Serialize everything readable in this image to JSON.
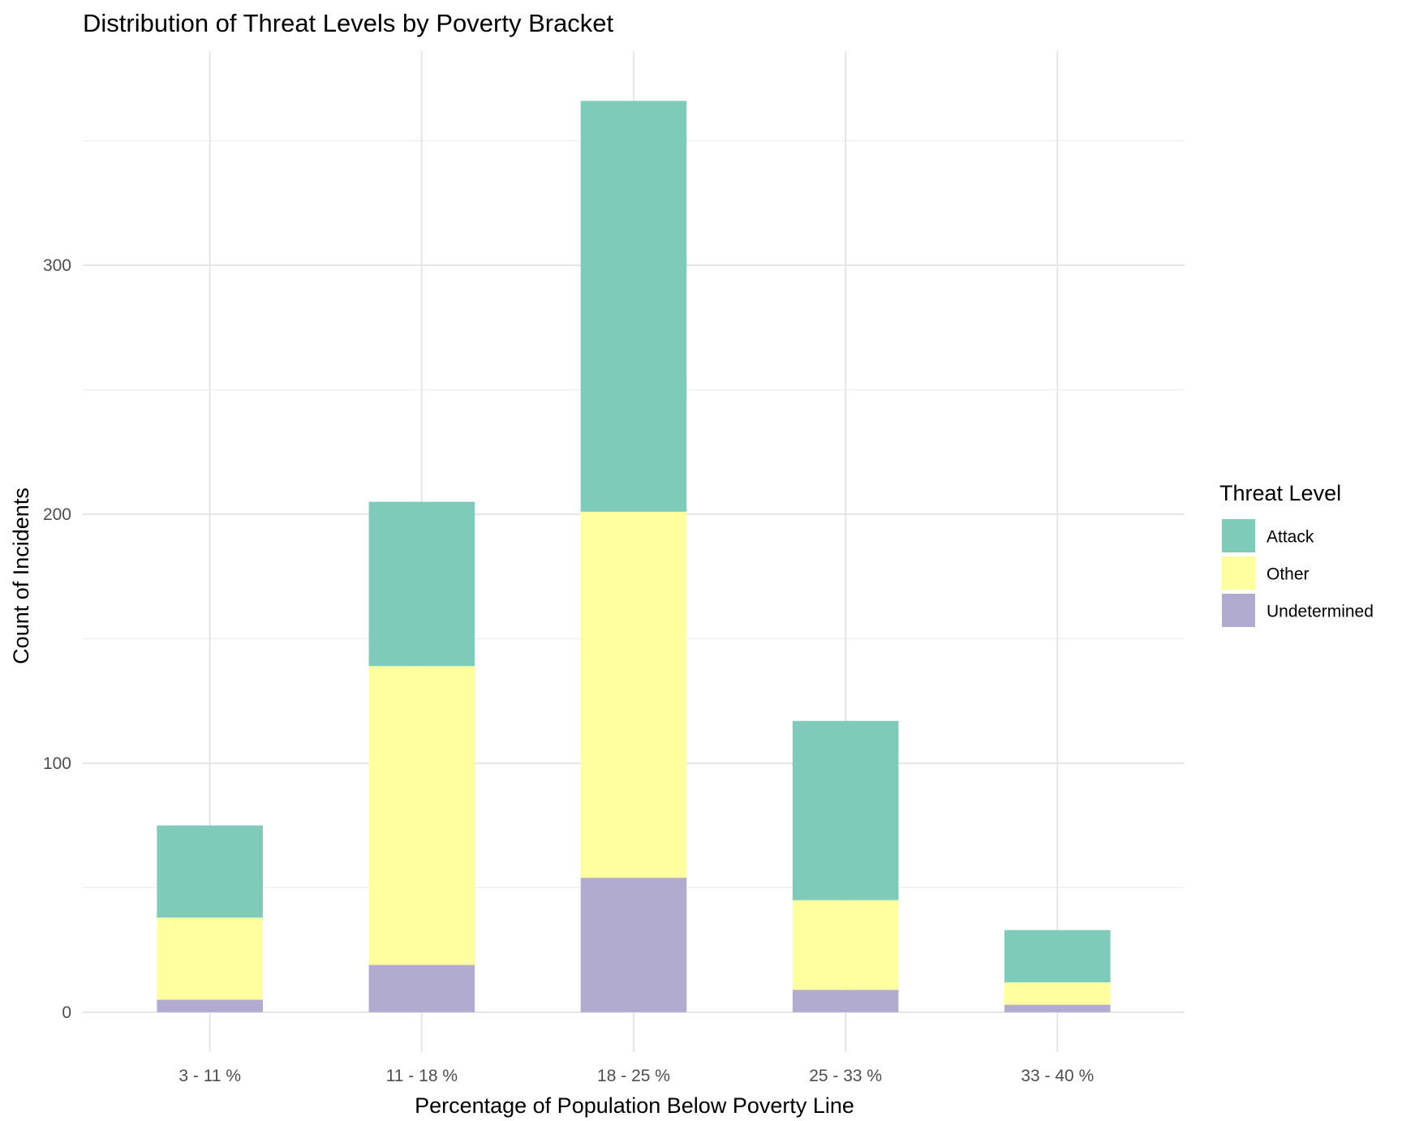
{
  "chart_data": {
    "type": "bar",
    "stacked": true,
    "title": "Distribution of Threat Levels by Poverty Bracket",
    "xlabel": "Percentage of Population Below Poverty Line",
    "ylabel": "Count of Incidents",
    "categories": [
      "3 - 11 %",
      "11 - 18 %",
      "18 - 25 %",
      "25 - 33 %",
      "33 - 40 %"
    ],
    "series": [
      {
        "name": "Undetermined",
        "color": "#b0abcf",
        "values": [
          5,
          19,
          54,
          9,
          3
        ]
      },
      {
        "name": "Other",
        "color": "#ffff9f",
        "values": [
          33,
          120,
          147,
          36,
          9
        ]
      },
      {
        "name": "Attack",
        "color": "#7fcbba",
        "values": [
          37,
          66,
          165,
          72,
          21
        ]
      }
    ],
    "totals": [
      75,
      205,
      366,
      117,
      33
    ],
    "ylim": [
      -16,
      386
    ],
    "yticks": [
      0,
      100,
      200,
      300
    ],
    "grid": true,
    "legend": {
      "title": "Threat Level",
      "position": "right",
      "order": [
        "Attack",
        "Other",
        "Undetermined"
      ]
    }
  }
}
